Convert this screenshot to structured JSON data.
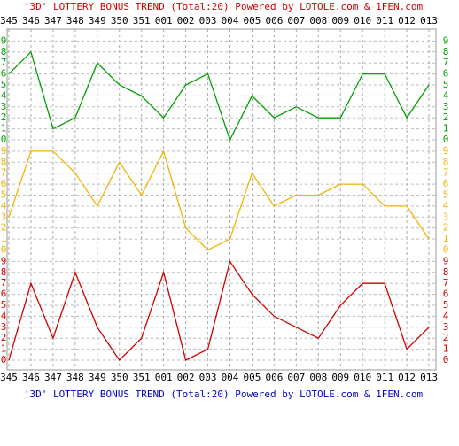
{
  "chart_data": {
    "type": "line",
    "title": "'3D' LOTTERY BONUS TREND (Total:20)  Powered by LOTOLE.com & 1FEN.com",
    "footer": "'3D' LOTTERY BONUS TREND (Total:20)  Powered by LOTOLE.com & 1FEN.com",
    "categories": [
      "345",
      "346",
      "347",
      "348",
      "349",
      "350",
      "351",
      "001",
      "002",
      "003",
      "004",
      "005",
      "006",
      "007",
      "008",
      "009",
      "010",
      "011",
      "012",
      "013"
    ],
    "ylim": [
      0,
      9
    ],
    "yticks": [
      0,
      1,
      2,
      3,
      4,
      5,
      6,
      7,
      8,
      9
    ],
    "grid": true,
    "series": [
      {
        "color": "#00a000",
        "values": [
          6,
          8,
          1,
          2,
          7,
          5,
          4,
          2,
          5,
          6,
          0,
          4,
          2,
          3,
          2,
          2,
          6,
          6,
          2,
          5
        ]
      },
      {
        "color": "#f0b400",
        "values": [
          3,
          9,
          9,
          7,
          4,
          8,
          5,
          9,
          2,
          0,
          1,
          7,
          4,
          5,
          5,
          6,
          6,
          4,
          4,
          1
        ]
      },
      {
        "color": "#d00000",
        "values": [
          0,
          7,
          2,
          8,
          3,
          0,
          2,
          8,
          0,
          1,
          9,
          6,
          4,
          3,
          2,
          5,
          7,
          7,
          1,
          3
        ]
      }
    ]
  }
}
